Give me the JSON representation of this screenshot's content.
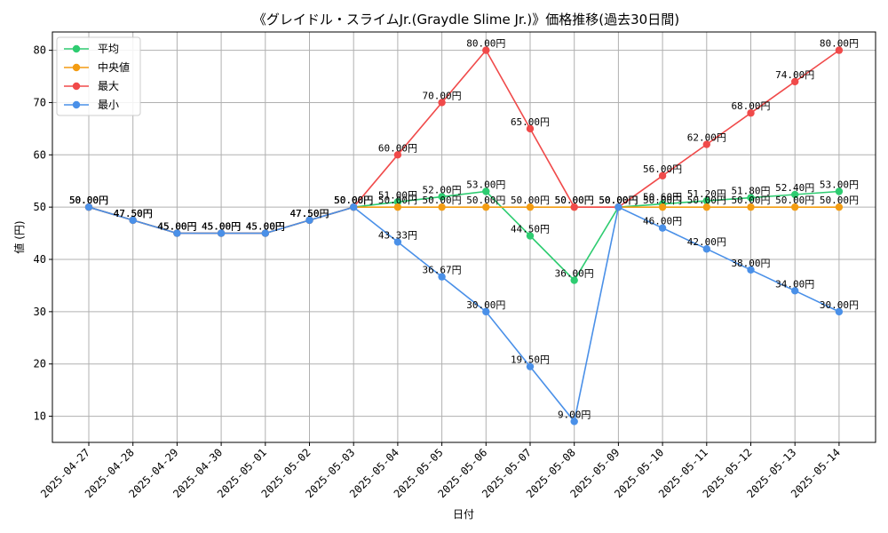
{
  "chart_data": {
    "type": "line",
    "title": "《グレイドル・スライムJr.(Graydle Slime Jr.)》価格推移(過去30日間)",
    "xlabel": "日付",
    "ylabel": "値 (円)",
    "ylim": [
      5,
      83.5
    ],
    "yticks": [
      10,
      20,
      30,
      40,
      50,
      60,
      70,
      80
    ],
    "grid": true,
    "legend_position": "top-left",
    "value_suffix": "円",
    "categories": [
      "2025-04-27",
      "2025-04-28",
      "2025-04-29",
      "2025-04-30",
      "2025-05-01",
      "2025-05-02",
      "2025-05-03",
      "2025-05-04",
      "2025-05-05",
      "2025-05-06",
      "2025-05-07",
      "2025-05-08",
      "2025-05-09",
      "2025-05-10",
      "2025-05-11",
      "2025-05-12",
      "2025-05-13",
      "2025-05-14"
    ],
    "series": [
      {
        "name": "平均",
        "color": "#2ecc71",
        "values": [
          50,
          47.5,
          45,
          45,
          45,
          47.5,
          50,
          51,
          52,
          53,
          44.5,
          36,
          50,
          50.6,
          51.2,
          51.8,
          52.4,
          53
        ]
      },
      {
        "name": "中央値",
        "color": "#f39c12",
        "values": [
          50,
          47.5,
          45,
          45,
          45,
          47.5,
          50,
          50,
          50,
          50,
          50,
          50,
          50,
          50,
          50,
          50,
          50,
          50
        ]
      },
      {
        "name": "最大",
        "color": "#f04a4a",
        "values": [
          50,
          47.5,
          45,
          45,
          45,
          47.5,
          50,
          60,
          70,
          80,
          65,
          50,
          50,
          56,
          62,
          68,
          74,
          80
        ]
      },
      {
        "name": "最小",
        "color": "#4a90e8",
        "values": [
          50,
          47.5,
          45,
          45,
          45,
          47.5,
          50,
          43.33,
          36.67,
          30,
          19.5,
          9,
          50,
          46,
          42,
          38,
          34,
          30
        ]
      }
    ]
  }
}
